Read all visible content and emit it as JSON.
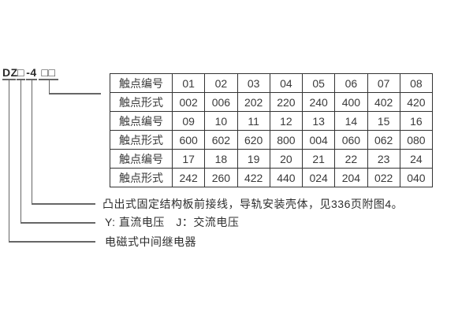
{
  "model": {
    "segments": [
      {
        "text": "DZ"
      },
      {
        "text": "□"
      },
      {
        "text": "-4"
      },
      {
        "text": "□□"
      }
    ]
  },
  "table": {
    "rows": [
      {
        "label": "触点编号",
        "values": [
          "01",
          "02",
          "03",
          "04",
          "05",
          "06",
          "07",
          "08"
        ]
      },
      {
        "label": "触点形式",
        "values": [
          "002",
          "006",
          "202",
          "220",
          "240",
          "400",
          "402",
          "420"
        ]
      },
      {
        "label": "触点编号",
        "values": [
          "09",
          "10",
          "11",
          "12",
          "13",
          "14",
          "15",
          "16"
        ]
      },
      {
        "label": "触点形式",
        "values": [
          "600",
          "602",
          "620",
          "800",
          "004",
          "060",
          "062",
          "080"
        ]
      },
      {
        "label": "触点编号",
        "values": [
          "17",
          "18",
          "19",
          "20",
          "21",
          "22",
          "23",
          "24"
        ]
      },
      {
        "label": "触点形式",
        "values": [
          "242",
          "260",
          "422",
          "440",
          "024",
          "204",
          "022",
          "040"
        ]
      }
    ]
  },
  "legend": {
    "structure": "凸出式固定结构板前接线，导轨安装壳体，见336页附图4。",
    "voltage": "Y: 直流电压　J：交流电压",
    "relay": "电磁式中间继电器"
  }
}
